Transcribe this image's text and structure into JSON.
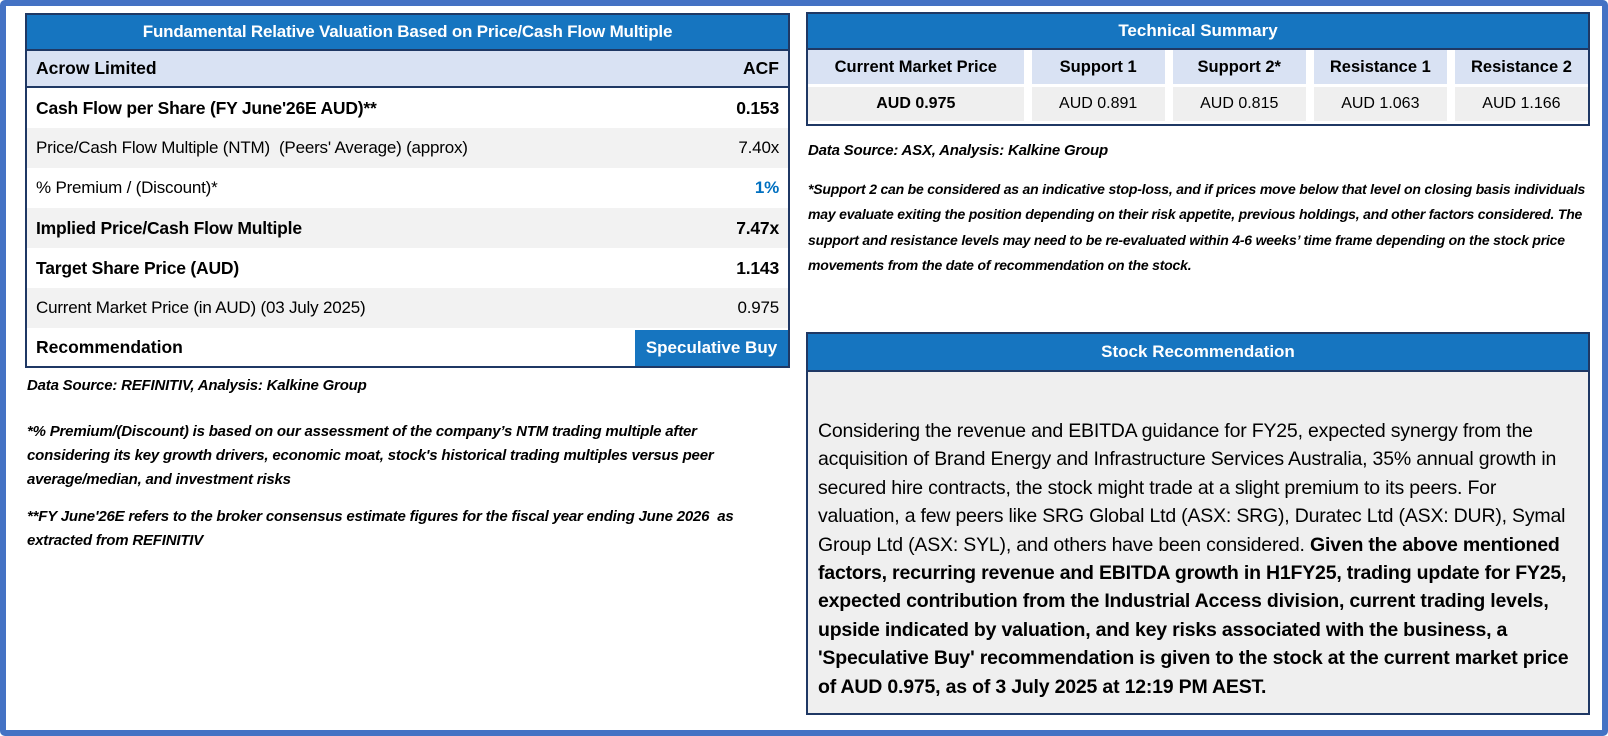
{
  "valuation_table": {
    "title": "Fundamental Relative Valuation Based on Price/Cash Flow Multiple",
    "company": "Acrow Limited",
    "ticker": "ACF",
    "rows": [
      {
        "label": "Cash Flow per Share (FY June'26E AUD)**",
        "value": "0.153"
      },
      {
        "label": "Price/Cash Flow Multiple (NTM)  (Peers' Average) (approx)",
        "value": "7.40x"
      },
      {
        "label": "% Premium / (Discount)*",
        "value": "1%"
      },
      {
        "label": "Implied Price/Cash Flow Multiple",
        "value": "7.47x"
      },
      {
        "label": "Target Share Price (AUD)",
        "value": "1.143"
      },
      {
        "label": "Current Market Price (in AUD) (03 July 2025)",
        "value": "0.975"
      }
    ],
    "recommendation_label": "Recommendation",
    "recommendation_value": "Speculative Buy",
    "source_note": "Data Source: REFINITIV, Analysis: Kalkine Group",
    "footnote1": "*% Premium/(Discount) is based on our assessment of the company’s NTM trading multiple after considering its key growth drivers, economic moat, stock's historical trading multiples versus peer average/median, and investment risks",
    "footnote2": "**FY June'26E refers to the broker consensus estimate figures for the fiscal year ending June 2026  as extracted from REFINITIV"
  },
  "technical_summary": {
    "title": "Technical Summary",
    "columns": [
      "Current Market Price",
      "Support 1",
      "Support 2*",
      "Resistance 1",
      "Resistance 2"
    ],
    "values": [
      "AUD 0.975",
      "AUD 0.891",
      "AUD 0.815",
      "AUD 1.063",
      "AUD 1.166"
    ],
    "source_note": "Data Source: ASX, Analysis: Kalkine Group",
    "footnote": "*Support 2 can be considered as an indicative stop-loss, and if prices move below that level on closing basis individuals may evaluate exiting the position depending on their risk appetite, previous holdings, and other factors considered. The support and resistance levels may need to be re-evaluated within 4-6 weeks’ time frame depending on the stock price movements from the date of recommendation on the stock."
  },
  "stock_recommendation": {
    "title": "Stock Recommendation",
    "body_regular": "Considering the revenue and EBITDA guidance for FY25, expected synergy from the acquisition of Brand Energy and Infrastructure Services Australia, 35% annual growth in secured hire contracts, the stock might trade at a slight premium to its peers. For valuation, a few peers like SRG Global Ltd (ASX: SRG), Duratec Ltd (ASX: DUR), Symal Group Ltd (ASX: SYL), and others have been considered. ",
    "body_bold": "Given the above mentioned factors, recurring revenue and EBITDA growth in H1FY25, trading update for FY25, expected contribution from the Industrial Access division, current trading levels, upside indicated by valuation, and key risks associated with the business, a 'Speculative Buy' recommendation is given to the stock at the current market price of AUD 0.975, as of 3 July 2025 at 12:19 PM AEST."
  },
  "colors": {
    "header_blue": "#1675C0",
    "border_navy": "#1F3864",
    "frame_blue": "#4472C4",
    "band_lavender": "#D9E2F3",
    "row_shade_gray": "#F2F2F2",
    "panel_gray": "#EFEFEF",
    "accent_text_blue": "#0070C0"
  }
}
